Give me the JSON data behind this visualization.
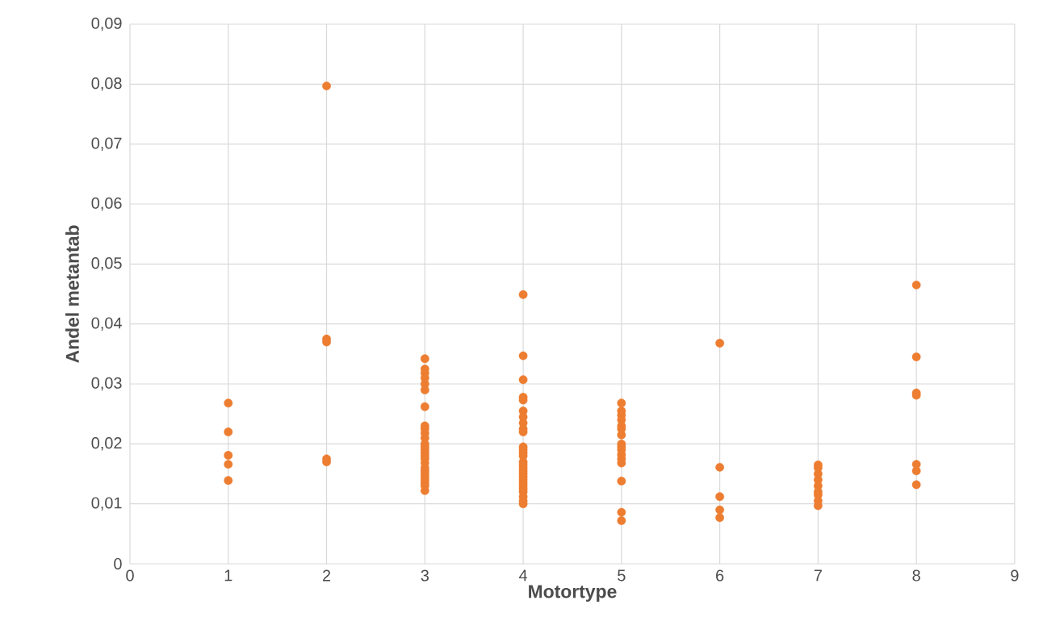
{
  "chart_data": {
    "type": "scatter",
    "xlabel": "Motortype",
    "ylabel": "Andel metantab",
    "xlim": [
      0,
      9
    ],
    "ylim": [
      0,
      0.09
    ],
    "xticks": [
      0,
      1,
      2,
      3,
      4,
      5,
      6,
      7,
      8,
      9
    ],
    "yticks": [
      0,
      {
        "value": 0.01,
        "label": "0,01"
      },
      {
        "value": 0.02,
        "label": "0,02"
      },
      {
        "value": 0.03,
        "label": "0,03"
      },
      {
        "value": 0.04,
        "label": "0,04"
      },
      {
        "value": 0.05,
        "label": "0,05"
      },
      {
        "value": 0.06,
        "label": "0,06"
      },
      {
        "value": 0.07,
        "label": "0,07"
      },
      {
        "value": 0.08,
        "label": "0,08"
      },
      {
        "value": 0.09,
        "label": "0,09"
      }
    ],
    "grid": true,
    "marker": "circle",
    "series": [
      {
        "color": "#ed7d31",
        "x": [
          1,
          1,
          1,
          1,
          1,
          2,
          2,
          2,
          2,
          2,
          3,
          3,
          3,
          3,
          3,
          3,
          3,
          3,
          3,
          3,
          3,
          3,
          3,
          3,
          3,
          3,
          3,
          3,
          3,
          3,
          3,
          3,
          3,
          3,
          3,
          3,
          4,
          4,
          4,
          4,
          4,
          4,
          4,
          4,
          4,
          4,
          4,
          4,
          4,
          4,
          4,
          4,
          4,
          4,
          4,
          4,
          4,
          4,
          4,
          4,
          4,
          4,
          4,
          4,
          5,
          5,
          5,
          5,
          5,
          5,
          5,
          5,
          5,
          5,
          5,
          5,
          5,
          5,
          5,
          5,
          6,
          6,
          6,
          6,
          6,
          7,
          7,
          7,
          7,
          7,
          7,
          7,
          7,
          7,
          8,
          8,
          8,
          8,
          8,
          8,
          8
        ],
        "values": [
          0.0268,
          0.022,
          0.0181,
          0.0166,
          0.0139,
          0.0797,
          0.0375,
          0.037,
          0.0175,
          0.017,
          0.0342,
          0.0325,
          0.0318,
          0.031,
          0.03,
          0.029,
          0.0262,
          0.023,
          0.0225,
          0.0218,
          0.021,
          0.02,
          0.0195,
          0.019,
          0.0185,
          0.018,
          0.0175,
          0.0168,
          0.016,
          0.0155,
          0.015,
          0.0145,
          0.014,
          0.0135,
          0.013,
          0.0122,
          0.0449,
          0.0347,
          0.0307,
          0.0278,
          0.0273,
          0.0255,
          0.0245,
          0.0235,
          0.0225,
          0.022,
          0.0195,
          0.019,
          0.0185,
          0.018,
          0.017,
          0.0165,
          0.016,
          0.0155,
          0.015,
          0.0145,
          0.014,
          0.0135,
          0.013,
          0.0125,
          0.012,
          0.0112,
          0.0105,
          0.01,
          0.0268,
          0.0255,
          0.0248,
          0.024,
          0.023,
          0.0225,
          0.0215,
          0.02,
          0.0195,
          0.019,
          0.0182,
          0.0175,
          0.0168,
          0.0138,
          0.0086,
          0.0072,
          0.0368,
          0.0161,
          0.0112,
          0.009,
          0.0077,
          0.0165,
          0.016,
          0.015,
          0.014,
          0.013,
          0.012,
          0.0115,
          0.0105,
          0.0097,
          0.0465,
          0.0345,
          0.0285,
          0.0281,
          0.0166,
          0.0155,
          0.0132
        ]
      }
    ]
  }
}
